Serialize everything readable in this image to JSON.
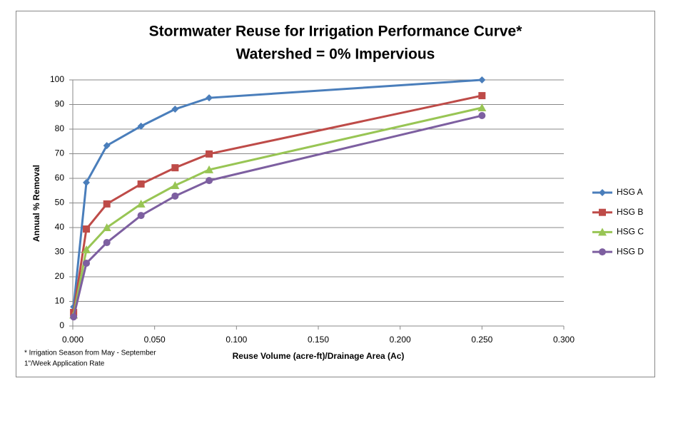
{
  "chart_data": {
    "type": "line",
    "title": [
      "Stormwater Reuse for Irrigation Performance Curve*",
      "Watershed = 0% Impervious"
    ],
    "x_label": "Reuse Volume (acre-ft)/Drainage Area (Ac)",
    "y_label": "Annual % Removal",
    "notes": [
      "* Irrigation Season from May - September",
      "1\"/Week Application Rate"
    ],
    "x": [
      0.0005,
      0.0083,
      0.0208,
      0.0417,
      0.0625,
      0.0833,
      0.25
    ],
    "series": [
      {
        "name": "HSG A",
        "color": "#4a7ebb",
        "marker": "diamond",
        "values": [
          7.8,
          58.3,
          73.3,
          81.2,
          88.1,
          92.7,
          100
        ]
      },
      {
        "name": "HSG B",
        "color": "#be4b48",
        "marker": "square",
        "values": [
          5.5,
          39.4,
          49.6,
          57.7,
          64.3,
          69.9,
          93.6
        ]
      },
      {
        "name": "HSG C",
        "color": "#98c554",
        "marker": "triangle",
        "values": [
          4.5,
          31,
          40,
          49.6,
          57.1,
          63.5,
          88.7
        ]
      },
      {
        "name": "HSG D",
        "color": "#7d5fa0",
        "marker": "circle",
        "values": [
          3.7,
          25.5,
          33.9,
          44.9,
          52.8,
          59.1,
          85.5
        ]
      }
    ],
    "xlim": [
      0,
      0.3
    ],
    "xticks": [
      {
        "value": 0,
        "label": "0.000"
      },
      {
        "value": 0.05,
        "label": "0.050"
      },
      {
        "value": 0.1,
        "label": "0.100"
      },
      {
        "value": 0.15,
        "label": "0.150"
      },
      {
        "value": 0.2,
        "label": "0.200"
      },
      {
        "value": 0.25,
        "label": "0.250"
      },
      {
        "value": 0.3,
        "label": "0.300"
      }
    ],
    "ylim": [
      0,
      100
    ],
    "yticks": [
      0,
      10,
      20,
      30,
      40,
      50,
      60,
      70,
      80,
      90,
      100
    ],
    "grid": true,
    "legend": "right"
  }
}
